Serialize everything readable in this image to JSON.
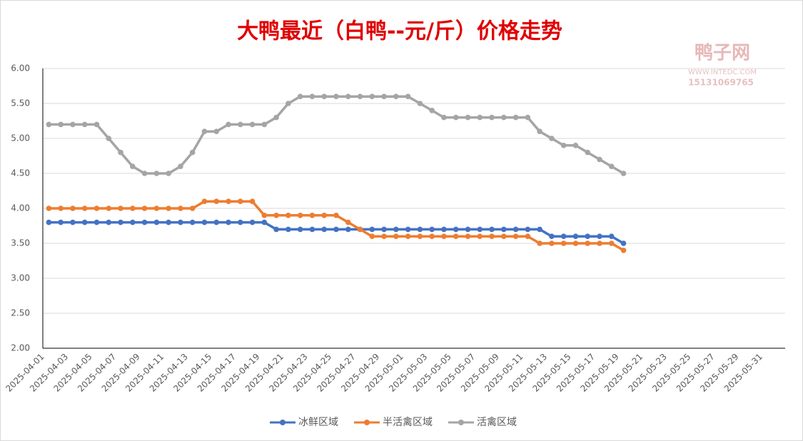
{
  "chart_data": {
    "type": "line",
    "title": "大鸭最近（白鸭--元/斤）价格走势",
    "watermark": {
      "name": "鸭子网",
      "url": "WWW.INTEDC.COM",
      "phone": "15131069765"
    },
    "categories": [
      "2025-04-01",
      null,
      "2025-04-03",
      null,
      "2025-04-05",
      null,
      "2025-04-07",
      null,
      "2025-04-09",
      null,
      "2025-04-11",
      null,
      "2025-04-13",
      null,
      "2025-04-15",
      null,
      "2025-04-17",
      null,
      "2025-04-19",
      null,
      "2025-04-21",
      null,
      "2025-04-23",
      null,
      "2025-04-25",
      null,
      "2025-04-27",
      null,
      "2025-04-29",
      null,
      "2025-05-01",
      null,
      "2025-05-03",
      null,
      "2025-05-05",
      null,
      "2025-05-07",
      null,
      "2025-05-09",
      null,
      "2025-05-11",
      null,
      "2025-05-13",
      null,
      "2025-05-15",
      null,
      "2025-05-17",
      null,
      "2025-05-19",
      null,
      "2025-05-21",
      null,
      "2025-05-23",
      null,
      "2025-05-25",
      null,
      "2025-05-27",
      null,
      "2025-05-29",
      null,
      "2025-05-31",
      null
    ],
    "series": [
      {
        "name": "冰鲜区域",
        "color": "#4472c4",
        "values": [
          3.8,
          3.8,
          3.8,
          3.8,
          3.8,
          3.8,
          3.8,
          3.8,
          3.8,
          3.8,
          3.8,
          3.8,
          3.8,
          3.8,
          3.8,
          3.8,
          3.8,
          3.8,
          3.8,
          3.7,
          3.7,
          3.7,
          3.7,
          3.7,
          3.7,
          3.7,
          3.7,
          3.7,
          3.7,
          3.7,
          3.7,
          3.7,
          3.7,
          3.7,
          3.7,
          3.7,
          3.7,
          3.7,
          3.7,
          3.7,
          3.7,
          3.7,
          3.6,
          3.6,
          3.6,
          3.6,
          3.6,
          3.6,
          3.5,
          null,
          null,
          null,
          null,
          null,
          null,
          null,
          null,
          null,
          null,
          null,
          null,
          null
        ]
      },
      {
        "name": "半活禽区域",
        "color": "#ed7d31",
        "values": [
          4.0,
          4.0,
          4.0,
          4.0,
          4.0,
          4.0,
          4.0,
          4.0,
          4.0,
          4.0,
          4.0,
          4.0,
          4.0,
          4.1,
          4.1,
          4.1,
          4.1,
          4.1,
          3.9,
          3.9,
          3.9,
          3.9,
          3.9,
          3.9,
          3.9,
          3.8,
          3.7,
          3.6,
          3.6,
          3.6,
          3.6,
          3.6,
          3.6,
          3.6,
          3.6,
          3.6,
          3.6,
          3.6,
          3.6,
          3.6,
          3.6,
          3.5,
          3.5,
          3.5,
          3.5,
          3.5,
          3.5,
          3.5,
          3.4,
          null,
          null,
          null,
          null,
          null,
          null,
          null,
          null,
          null,
          null,
          null,
          null,
          null
        ]
      },
      {
        "name": "活禽区域",
        "color": "#a5a5a5",
        "values": [
          5.2,
          5.2,
          5.2,
          5.2,
          5.2,
          5.0,
          4.8,
          4.6,
          4.5,
          4.5,
          4.5,
          4.6,
          4.8,
          5.1,
          5.1,
          5.2,
          5.2,
          5.2,
          5.2,
          5.3,
          5.5,
          5.6,
          5.6,
          5.6,
          5.6,
          5.6,
          5.6,
          5.6,
          5.6,
          5.6,
          5.6,
          5.5,
          5.4,
          5.3,
          5.3,
          5.3,
          5.3,
          5.3,
          5.3,
          5.3,
          5.3,
          5.1,
          5.0,
          4.9,
          4.9,
          4.8,
          4.7,
          4.6,
          4.5,
          null,
          null,
          null,
          null,
          null,
          null,
          null,
          null,
          null,
          null,
          null,
          null,
          null
        ]
      }
    ],
    "ylim": [
      2,
      6
    ],
    "yticks": [
      {
        "value": 2,
        "label": "2.00"
      },
      {
        "value": 2.5,
        "label": "2.50"
      },
      {
        "value": 3,
        "label": "3.00"
      },
      {
        "value": 3.5,
        "label": "3.50"
      },
      {
        "value": 4,
        "label": "4.00"
      },
      {
        "value": 4.5,
        "label": "4.50"
      },
      {
        "value": 5,
        "label": "5.00"
      },
      {
        "value": 5.5,
        "label": "5.50"
      },
      {
        "value": 6,
        "label": "6.00"
      }
    ],
    "grid": true,
    "legend": "bottom"
  }
}
